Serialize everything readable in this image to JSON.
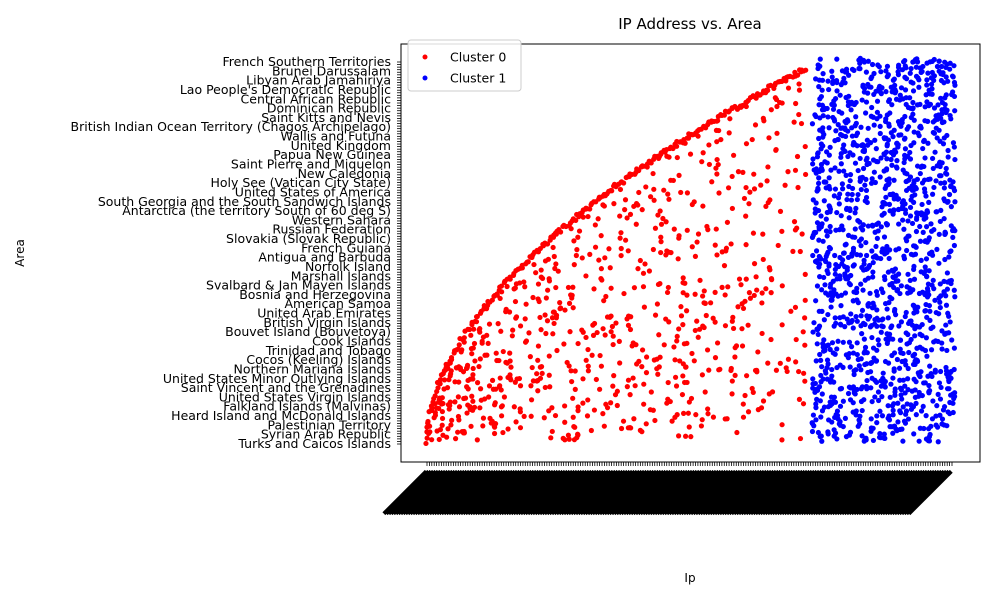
{
  "chart_data": {
    "type": "scatter",
    "title": "IP Address vs. Area",
    "xlabel": "Ip",
    "ylabel": "Area",
    "grid": false,
    "legend": {
      "placement": "top-left"
    },
    "series": [
      {
        "name": "Cluster 0",
        "color": "#ff0000"
      },
      {
        "name": "Cluster 1",
        "color": "#0000ff"
      }
    ],
    "y_tick_labels_visible": [
      "French Southern Territories",
      "Brunei Darussalam",
      "Libyan Arab Jamahiriya",
      "Lao People's Democratic Republic",
      "Central African Republic",
      "Dominican Republic",
      "Saint Kitts and Nevis",
      "British Indian Ocean Territory (Chagos Archipelago)",
      "Wallis and Futuna",
      "United Kingdom",
      "Papua New Guinea",
      "Saint Pierre and Miquelon",
      "New Caledonia",
      "Holy See (Vatican City State)",
      "United States of America",
      "South Georgia and the South Sandwich Islands",
      "Antarctica (the territory South of 60 deg S)",
      "Western Sahara",
      "Russian Federation",
      "Slovakia (Slovak Republic)",
      "French Guiana",
      "Antigua and Barbuda",
      "Norfolk Island",
      "Marshall Islands",
      "Svalbard & Jan Mayen Islands",
      "Bosnia and Herzegovina",
      "American Samoa",
      "United Arab Emirates",
      "British Virgin Islands",
      "Bouvet Island (Bouvetoya)",
      "Cook Islands",
      "Trinidad and Tobago",
      "Cocos (Keeling) Islands",
      "Northern Mariana Islands",
      "United States Minor Outlying Islands",
      "Saint Vincent and the Grenadines",
      "United States Virgin Islands",
      "Falkland Islands (Malvinas)",
      "Heard Island and McDonald Islands",
      "Palestinian Territory",
      "Syrian Arab Republic",
      "Turks and Caicos Islands"
    ]
  }
}
